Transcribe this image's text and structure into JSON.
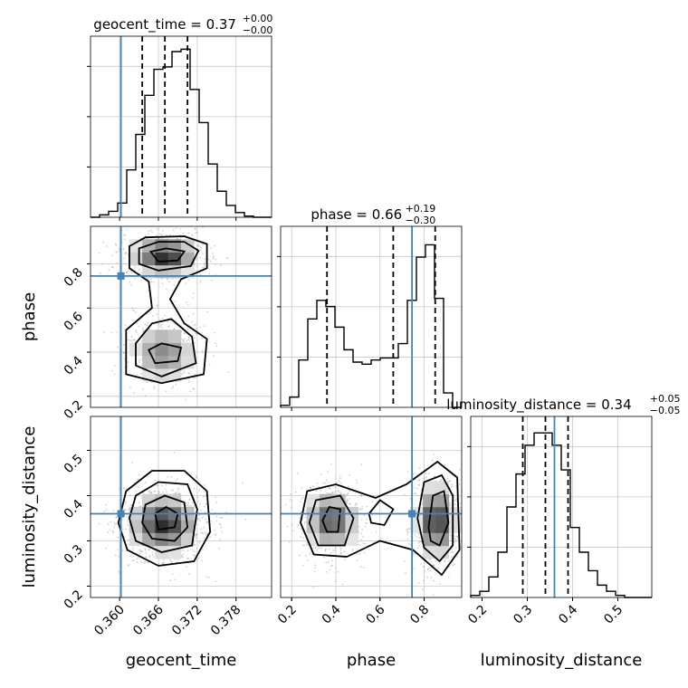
{
  "chart_data": {
    "type": "corner",
    "parameters": [
      {
        "name": "geocent_time",
        "label": "geocent_time",
        "range": [
          0.3555,
          0.3835
        ],
        "ticks": [
          0.36,
          0.366,
          0.372,
          0.378
        ],
        "tick_labels": [
          "0.360",
          "0.366",
          "0.372",
          "0.378"
        ],
        "truth": 0.3602,
        "quantiles": [
          0.3635,
          0.367,
          0.3705
        ],
        "title_main": "geocent_time = 0.37",
        "title_plus": "+0.00",
        "title_minus": "−0.00",
        "hist_bins": [
          0.3555,
          0.3583,
          0.3611,
          0.3639,
          0.3667,
          0.3695,
          0.3723,
          0.3751,
          0.3779,
          0.3807,
          0.3835
        ],
        "hist": {
          "edges": [
            0.3555,
            0.3569,
            0.3583,
            0.3597,
            0.3611,
            0.3625,
            0.3639,
            0.3653,
            0.3667,
            0.3681,
            0.3695,
            0.3709,
            0.3723,
            0.3737,
            0.3751,
            0.3765,
            0.3779,
            0.3793,
            0.3807,
            0.3821,
            0.3835
          ],
          "counts": [
            0,
            2,
            5,
            12,
            40,
            70,
            103,
            125,
            127,
            140,
            142,
            108,
            80,
            45,
            22,
            10,
            4,
            1,
            0,
            0
          ],
          "ymax": 153
        }
      },
      {
        "name": "phase",
        "label": "phase",
        "range": [
          0.15,
          0.97
        ],
        "ticks": [
          0.2,
          0.4,
          0.6,
          0.8
        ],
        "tick_labels": [
          "0.2",
          "0.4",
          "0.6",
          "0.8"
        ],
        "truth": 0.745,
        "quantiles": [
          0.36,
          0.66,
          0.85
        ],
        "title_main": "phase = 0.66",
        "title_plus": "+0.19",
        "title_minus": "−0.30",
        "hist": {
          "edges": [
            0.15,
            0.191,
            0.232,
            0.273,
            0.314,
            0.355,
            0.396,
            0.437,
            0.478,
            0.519,
            0.56,
            0.601,
            0.642,
            0.683,
            0.724,
            0.765,
            0.806,
            0.847,
            0.888,
            0.929,
            0.97
          ],
          "counts": [
            2,
            10,
            46,
            86,
            104,
            98,
            78,
            56,
            44,
            42,
            46,
            48,
            48,
            62,
            104,
            146,
            158,
            106,
            14,
            0
          ],
          "ymax": 176
        }
      },
      {
        "name": "luminosity_distance",
        "label": "luminosity_distance",
        "range": [
          0.175,
          0.575
        ],
        "ticks": [
          0.2,
          0.3,
          0.4,
          0.5
        ],
        "tick_labels": [
          "0.2",
          "0.3",
          "0.4",
          "0.5"
        ],
        "truth": 0.36,
        "quantiles": [
          0.29,
          0.34,
          0.39
        ],
        "title_main": "luminosity_distance = 0.34",
        "title_plus": "+0.05",
        "title_minus": "−0.05",
        "hist": {
          "edges": [
            0.175,
            0.195,
            0.215,
            0.235,
            0.255,
            0.275,
            0.295,
            0.315,
            0.335,
            0.355,
            0.375,
            0.395,
            0.415,
            0.435,
            0.455,
            0.475,
            0.495,
            0.515,
            0.535,
            0.555,
            0.575
          ],
          "counts": [
            1,
            3,
            10,
            22,
            44,
            60,
            74,
            80,
            80,
            74,
            62,
            34,
            22,
            13,
            6,
            3,
            1,
            0,
            0,
            0
          ],
          "ymax": 88
        }
      }
    ],
    "pairs": [
      {
        "x": "geocent_time",
        "y": "phase",
        "modes": [
          {
            "cx": 0.367,
            "cy": 0.835,
            "sx": 0.0026,
            "sy": 0.045,
            "w": 1.0
          },
          {
            "cx": 0.3668,
            "cy": 0.4,
            "sx": 0.0026,
            "sy": 0.07,
            "w": 0.55
          }
        ],
        "contours": [
          [
            [
              0.3615,
              0.88
            ],
            [
              0.364,
              0.92
            ],
            [
              0.37,
              0.925
            ],
            [
              0.3735,
              0.89
            ],
            [
              0.3735,
              0.78
            ],
            [
              0.3695,
              0.73
            ],
            [
              0.3678,
              0.64
            ],
            [
              0.37,
              0.53
            ],
            [
              0.3735,
              0.46
            ],
            [
              0.373,
              0.3
            ],
            [
              0.3665,
              0.26
            ],
            [
              0.361,
              0.3
            ],
            [
              0.361,
              0.5
            ],
            [
              0.365,
              0.6
            ],
            [
              0.3645,
              0.72
            ],
            [
              0.3615,
              0.78
            ]
          ],
          [
            [
              0.363,
              0.87
            ],
            [
              0.366,
              0.9
            ],
            [
              0.37,
              0.9
            ],
            [
              0.3722,
              0.86
            ],
            [
              0.371,
              0.79
            ],
            [
              0.366,
              0.77
            ],
            [
              0.363,
              0.8
            ]
          ],
          [
            [
              0.3625,
              0.44
            ],
            [
              0.365,
              0.53
            ],
            [
              0.368,
              0.55
            ],
            [
              0.3712,
              0.47
            ],
            [
              0.3718,
              0.35
            ],
            [
              0.3665,
              0.29
            ],
            [
              0.3625,
              0.34
            ]
          ],
          [
            [
              0.3648,
              0.855
            ],
            [
              0.3672,
              0.87
            ],
            [
              0.37,
              0.857
            ],
            [
              0.369,
              0.815
            ],
            [
              0.366,
              0.81
            ]
          ],
          [
            [
              0.3645,
              0.41
            ],
            [
              0.3665,
              0.44
            ],
            [
              0.3695,
              0.42
            ],
            [
              0.369,
              0.36
            ],
            [
              0.3655,
              0.35
            ]
          ]
        ],
        "points": 1100
      },
      {
        "x": "geocent_time",
        "y": "luminosity_distance",
        "modes": [
          {
            "cx": 0.3668,
            "cy": 0.338,
            "sx": 0.0027,
            "sy": 0.033,
            "w": 1.0
          }
        ],
        "contours": [
          [
            [
              0.361,
              0.41
            ],
            [
              0.365,
              0.455
            ],
            [
              0.37,
              0.455
            ],
            [
              0.3735,
              0.41
            ],
            [
              0.374,
              0.32
            ],
            [
              0.3715,
              0.255
            ],
            [
              0.366,
              0.245
            ],
            [
              0.3612,
              0.28
            ],
            [
              0.3598,
              0.34
            ]
          ],
          [
            [
              0.3625,
              0.4
            ],
            [
              0.366,
              0.43
            ],
            [
              0.3705,
              0.425
            ],
            [
              0.372,
              0.37
            ],
            [
              0.3712,
              0.29
            ],
            [
              0.3665,
              0.275
            ],
            [
              0.3625,
              0.3
            ],
            [
              0.3615,
              0.35
            ]
          ],
          [
            [
              0.364,
              0.38
            ],
            [
              0.367,
              0.4
            ],
            [
              0.37,
              0.385
            ],
            [
              0.3705,
              0.33
            ],
            [
              0.3685,
              0.3
            ],
            [
              0.365,
              0.305
            ],
            [
              0.3635,
              0.34
            ]
          ],
          [
            [
              0.3655,
              0.36
            ],
            [
              0.3672,
              0.375
            ],
            [
              0.369,
              0.36
            ],
            [
              0.3685,
              0.33
            ],
            [
              0.366,
              0.325
            ]
          ]
        ],
        "points": 1000
      },
      {
        "x": "phase",
        "y": "luminosity_distance",
        "modes": [
          {
            "cx": 0.38,
            "cy": 0.345,
            "sx": 0.06,
            "sy": 0.035,
            "w": 0.8
          },
          {
            "cx": 0.855,
            "cy": 0.345,
            "sx": 0.045,
            "sy": 0.04,
            "w": 1.0
          }
        ],
        "contours": [
          [
            [
              0.24,
              0.34
            ],
            [
              0.27,
              0.41
            ],
            [
              0.4,
              0.425
            ],
            [
              0.58,
              0.395
            ],
            [
              0.72,
              0.425
            ],
            [
              0.86,
              0.475
            ],
            [
              0.95,
              0.44
            ],
            [
              0.96,
              0.28
            ],
            [
              0.88,
              0.225
            ],
            [
              0.75,
              0.28
            ],
            [
              0.6,
              0.3
            ],
            [
              0.45,
              0.265
            ],
            [
              0.3,
              0.27
            ]
          ],
          [
            [
              0.28,
              0.34
            ],
            [
              0.31,
              0.39
            ],
            [
              0.42,
              0.4
            ],
            [
              0.48,
              0.35
            ],
            [
              0.44,
              0.29
            ],
            [
              0.32,
              0.29
            ]
          ],
          [
            [
              0.77,
              0.35
            ],
            [
              0.8,
              0.43
            ],
            [
              0.88,
              0.445
            ],
            [
              0.93,
              0.4
            ],
            [
              0.93,
              0.29
            ],
            [
              0.87,
              0.255
            ],
            [
              0.8,
              0.285
            ]
          ],
          [
            [
              0.55,
              0.36
            ],
            [
              0.6,
              0.39
            ],
            [
              0.66,
              0.37
            ],
            [
              0.62,
              0.335
            ],
            [
              0.56,
              0.34
            ]
          ],
          [
            [
              0.34,
              0.345
            ],
            [
              0.37,
              0.375
            ],
            [
              0.42,
              0.37
            ],
            [
              0.41,
              0.32
            ],
            [
              0.36,
              0.32
            ]
          ],
          [
            [
              0.82,
              0.33
            ],
            [
              0.84,
              0.4
            ],
            [
              0.89,
              0.41
            ],
            [
              0.91,
              0.34
            ],
            [
              0.87,
              0.29
            ],
            [
              0.83,
              0.3
            ]
          ]
        ],
        "points": 1300
      }
    ]
  }
}
